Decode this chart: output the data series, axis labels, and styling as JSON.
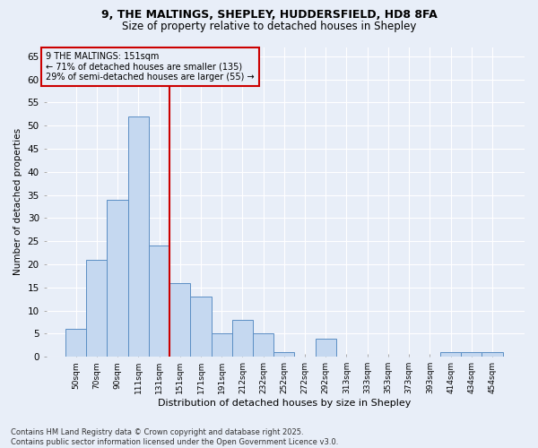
{
  "title_line1": "9, THE MALTINGS, SHEPLEY, HUDDERSFIELD, HD8 8FA",
  "title_line2": "Size of property relative to detached houses in Shepley",
  "xlabel": "Distribution of detached houses by size in Shepley",
  "ylabel": "Number of detached properties",
  "categories": [
    "50sqm",
    "70sqm",
    "90sqm",
    "111sqm",
    "131sqm",
    "151sqm",
    "171sqm",
    "191sqm",
    "212sqm",
    "232sqm",
    "252sqm",
    "272sqm",
    "292sqm",
    "313sqm",
    "333sqm",
    "353sqm",
    "373sqm",
    "393sqm",
    "414sqm",
    "434sqm",
    "454sqm"
  ],
  "values": [
    6,
    21,
    34,
    52,
    24,
    16,
    13,
    5,
    8,
    5,
    1,
    0,
    4,
    0,
    0,
    0,
    0,
    0,
    1,
    1,
    1
  ],
  "bar_color": "#c5d8f0",
  "bar_edge_color": "#5b8ec4",
  "vline_color": "#cc0000",
  "vline_index": 5,
  "annotation_title": "9 THE MALTINGS: 151sqm",
  "annotation_line2": "← 71% of detached houses are smaller (135)",
  "annotation_line3": "29% of semi-detached houses are larger (55) →",
  "annotation_box_color": "#cc0000",
  "ylim": [
    0,
    67
  ],
  "yticks": [
    0,
    5,
    10,
    15,
    20,
    25,
    30,
    35,
    40,
    45,
    50,
    55,
    60,
    65
  ],
  "background_color": "#e8eef8",
  "grid_color": "#ffffff",
  "footer_line1": "Contains HM Land Registry data © Crown copyright and database right 2025.",
  "footer_line2": "Contains public sector information licensed under the Open Government Licence v3.0."
}
